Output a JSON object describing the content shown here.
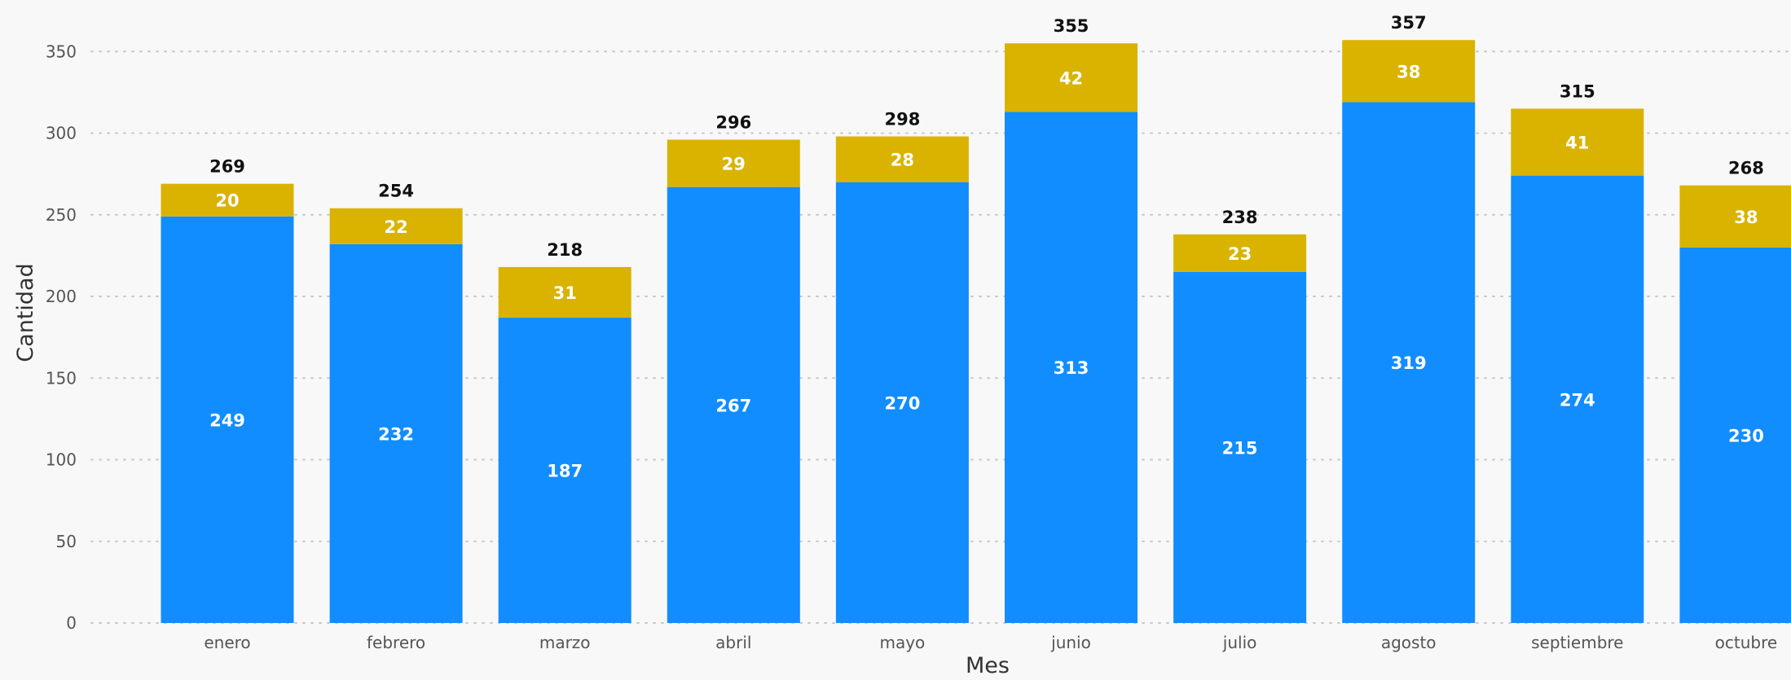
{
  "chart_data": {
    "type": "bar",
    "stacked": true,
    "categories": [
      "enero",
      "febrero",
      "marzo",
      "abril",
      "mayo",
      "junio",
      "julio",
      "agosto",
      "septiembre",
      "octubre"
    ],
    "series": [
      {
        "values": [
          249,
          232,
          187,
          267,
          270,
          313,
          215,
          319,
          274,
          230
        ],
        "color": "#118dff"
      },
      {
        "values": [
          20,
          22,
          31,
          29,
          28,
          42,
          23,
          38,
          41,
          38
        ],
        "color": "#d9b300"
      }
    ],
    "totals": [
      269,
      254,
      218,
      296,
      298,
      355,
      238,
      357,
      315,
      268
    ],
    "xlabel": "Mes",
    "ylabel": "Cantidad",
    "ylim": [
      0,
      350
    ],
    "yticks": [
      0,
      50,
      100,
      150,
      200,
      250,
      300,
      350
    ],
    "grid": true,
    "legend": "none"
  }
}
